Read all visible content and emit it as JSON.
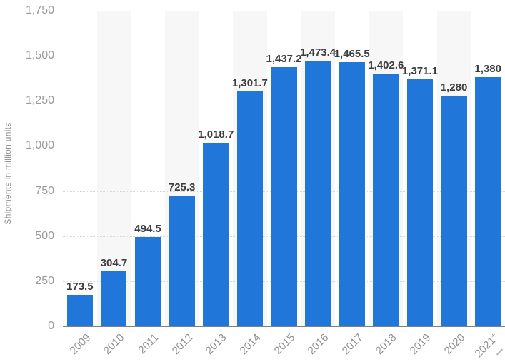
{
  "chart_data": {
    "type": "bar",
    "title": "",
    "xlabel": "",
    "ylabel": "Shipments in million units",
    "categories": [
      "2009",
      "2010",
      "2011",
      "2012",
      "2013",
      "2014",
      "2015",
      "2016",
      "2017",
      "2018",
      "2019",
      "2020",
      "2021*"
    ],
    "values": [
      173.5,
      304.7,
      494.5,
      725.3,
      1018.7,
      1301.7,
      1437.2,
      1473.4,
      1465.5,
      1402.6,
      1371.1,
      1280,
      1380
    ],
    "value_labels": [
      "173.5",
      "304.7",
      "494.5",
      "725.3",
      "1,018.7",
      "1,301.7",
      "1,437.2",
      "1,473.4",
      "1,465.5",
      "1,402.6",
      "1,371.1",
      "1,280",
      "1,380"
    ],
    "ylim": [
      0,
      1750
    ],
    "ytick_values": [
      0,
      250,
      500,
      750,
      1000,
      1250,
      1500,
      1750
    ],
    "ytick_labels": [
      "0",
      "250",
      "500",
      "750",
      "1,000",
      "1,250",
      "1,500",
      "1,750"
    ],
    "grid": "horizontal-dotted",
    "legend_position": "none",
    "plot_band_pattern": "alternating-columns",
    "colors": {
      "bar": "#2077d9",
      "band": "#f7f7f7",
      "gridline": "#d7d7d7",
      "axis_line": "#7f7f7f",
      "y_tick_label": "#9b9b9b",
      "x_tick_label": "#8f8f8f",
      "value_label": "#3d3d3d",
      "axis_title": "#8f8f8f"
    }
  }
}
